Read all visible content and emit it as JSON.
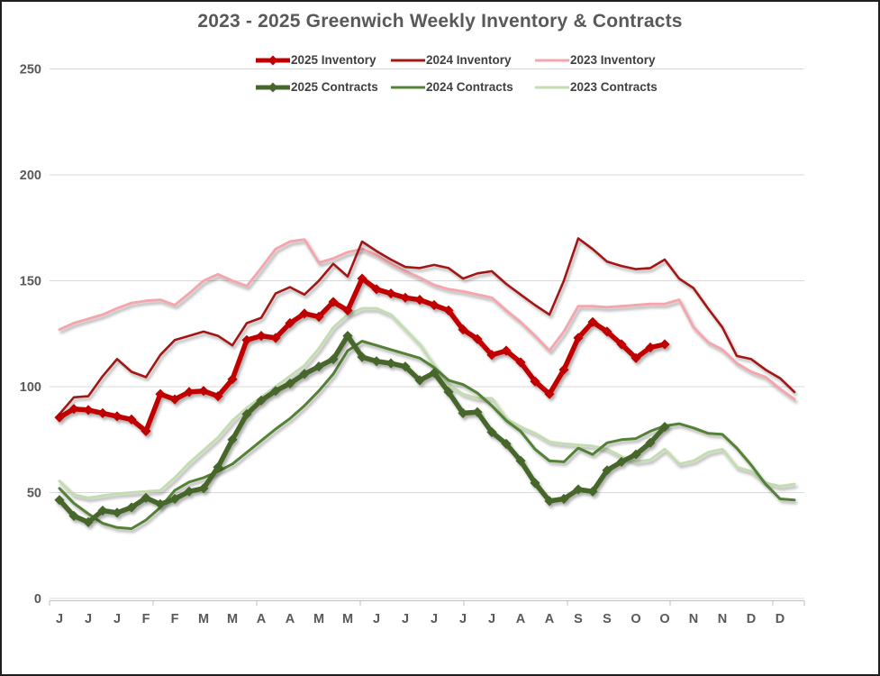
{
  "title": "2023 - 2025 Greenwich Weekly Inventory & Contracts",
  "chart_data": {
    "type": "line",
    "title": "2023 - 2025 Greenwich Weekly Inventory & Contracts",
    "xlabel": "",
    "ylabel": "",
    "ylim": [
      0,
      250
    ],
    "grid": "horizontal",
    "legend_position": "top",
    "x_unit": "week (52 weekly points per year, tick label every 2nd week)",
    "x_axis": {
      "tick_labels": [
        "J",
        "J",
        "J",
        "F",
        "F",
        "M",
        "M",
        "A",
        "A",
        "M",
        "M",
        "J",
        "J",
        "J",
        "J",
        "J",
        "A",
        "A",
        "S",
        "S",
        "O",
        "O",
        "N",
        "N",
        "D",
        "D"
      ]
    },
    "y_axis": {
      "ticks": [
        250,
        200,
        150,
        100,
        50,
        0
      ]
    },
    "series": [
      {
        "name": "2025 Inventory",
        "color": "#c00000",
        "style": "thick-diamond",
        "values": [
          85.5,
          89.5,
          89,
          87.5,
          86,
          84.5,
          79,
          96.5,
          94,
          97.5,
          98,
          95.5,
          103.5,
          122,
          124,
          123,
          130,
          134.5,
          133,
          140,
          136,
          151,
          146,
          144,
          142,
          141,
          138.5,
          136,
          127,
          122.5,
          115,
          117,
          111.5,
          102.5,
          96.5,
          108,
          123,
          130.5,
          126,
          120,
          113.5,
          118.5,
          120
        ]
      },
      {
        "name": "2024 Inventory",
        "color": "#a31919",
        "style": "thin",
        "values": [
          87,
          95,
          95.5,
          105,
          113,
          107,
          104.5,
          115,
          122,
          124,
          126,
          124,
          119.5,
          130,
          132.5,
          144,
          147,
          143.5,
          150,
          158,
          152,
          168.5,
          164,
          160,
          156.5,
          156,
          157.5,
          156,
          151,
          153.5,
          154.5,
          148.5,
          143.5,
          138.5,
          134,
          150,
          170,
          165,
          159,
          157,
          155.5,
          156,
          160,
          151,
          146.5,
          137,
          128,
          114.5,
          113,
          108,
          104,
          97.5
        ]
      },
      {
        "name": "2023 Inventory",
        "color": "#f3a6ae",
        "style": "thin",
        "values": [
          127,
          130,
          132,
          134,
          137,
          139.5,
          140.5,
          141,
          138.5,
          144,
          150,
          153,
          150,
          147.5,
          156,
          165,
          168.5,
          169.5,
          158.5,
          160.5,
          163.5,
          165,
          162,
          158,
          154.5,
          151.5,
          148,
          146,
          145,
          143.5,
          142,
          136,
          130.5,
          124,
          117,
          126,
          138,
          138,
          137.5,
          138,
          138.5,
          139,
          139,
          141,
          128,
          121,
          117.5,
          111,
          107,
          104.5,
          99,
          94
        ]
      },
      {
        "name": "2025 Contracts",
        "color": "#47662b",
        "style": "thick-diamond",
        "values": [
          46.5,
          39,
          36,
          41.5,
          40.5,
          43,
          47.5,
          44.5,
          47,
          50.5,
          52,
          62,
          75,
          87,
          93.5,
          98,
          101.5,
          106,
          109.5,
          113,
          124,
          114,
          112,
          111,
          109.5,
          103,
          106.5,
          97.5,
          87.5,
          88,
          78.5,
          73,
          65,
          54.5,
          46,
          47,
          51.5,
          50.5,
          60.5,
          64.5,
          68,
          73.5,
          81
        ]
      },
      {
        "name": "2024 Contracts",
        "color": "#538135",
        "style": "thin",
        "values": [
          52,
          45,
          40,
          35.5,
          33.5,
          33,
          37,
          43,
          51,
          55,
          57,
          60,
          63.5,
          69,
          74.5,
          80,
          85,
          91,
          98,
          106,
          117,
          121.5,
          119.5,
          117.5,
          115.5,
          113.5,
          109,
          103,
          101,
          97,
          91,
          84,
          79,
          70.5,
          65,
          64.5,
          71,
          68,
          73.5,
          75,
          75.5,
          79,
          81.5,
          82.5,
          80.5,
          78,
          77.5,
          71,
          63,
          54,
          47,
          46.5
        ]
      },
      {
        "name": "2023 Contracts",
        "color": "#c3ddb1",
        "style": "thin",
        "values": [
          55.5,
          49,
          47.5,
          48.5,
          49.5,
          50,
          50.5,
          51,
          57,
          64,
          70,
          76,
          84,
          90,
          95,
          100,
          105,
          110,
          118,
          128,
          134,
          137,
          137,
          134,
          127,
          120,
          110,
          101,
          96.5,
          94.5,
          94.5,
          85,
          81,
          78,
          74,
          73,
          72.5,
          72,
          70.5,
          67,
          64.5,
          65.5,
          70.5,
          63.5,
          65,
          69,
          70.5,
          62,
          60,
          54.5,
          53,
          54
        ]
      }
    ]
  },
  "legend": {
    "rows": [
      [
        "2025 Inventory",
        "2024 Inventory",
        "2023 Inventory"
      ],
      [
        "2025 Contracts",
        "2024 Contracts",
        "2023 Contracts"
      ]
    ]
  }
}
